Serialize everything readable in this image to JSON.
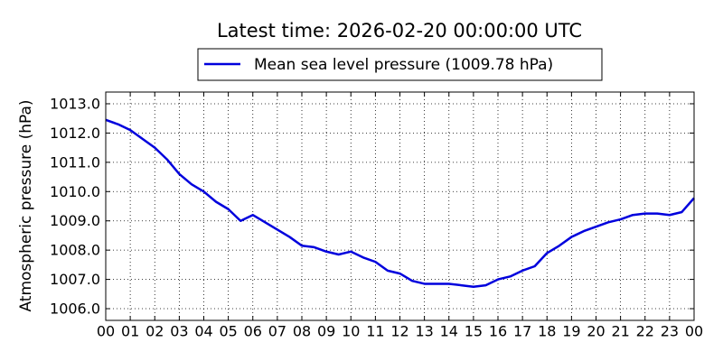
{
  "chart_data": {
    "type": "line",
    "title": "Latest time: 2026-02-20 00:00:00 UTC",
    "y_label": "Atmospheric pressure (hPa)",
    "x": [
      0,
      0.5,
      1,
      1.5,
      2,
      2.5,
      3,
      3.5,
      4,
      4.5,
      5,
      5.5,
      6,
      6.5,
      7,
      7.5,
      8,
      8.5,
      9,
      9.5,
      10,
      10.5,
      11,
      11.5,
      12,
      12.5,
      13,
      13.5,
      14,
      14.5,
      15,
      15.5,
      16,
      16.5,
      17,
      17.5,
      18,
      18.5,
      19,
      19.5,
      20,
      20.5,
      21,
      21.5,
      22,
      22.5,
      23,
      23.5,
      24
    ],
    "series": [
      {
        "name": "Mean sea level pressure (1009.78 hPa)",
        "color": "#0000dd",
        "values": [
          1012.45,
          1012.3,
          1012.1,
          1011.8,
          1011.5,
          1011.1,
          1010.6,
          1010.25,
          1010.0,
          1009.65,
          1009.4,
          1009.0,
          1009.2,
          1008.95,
          1008.7,
          1008.45,
          1008.15,
          1008.1,
          1007.95,
          1007.85,
          1007.95,
          1007.75,
          1007.6,
          1007.3,
          1007.2,
          1006.95,
          1006.85,
          1006.85,
          1006.85,
          1006.8,
          1006.75,
          1006.8,
          1007.0,
          1007.1,
          1007.3,
          1007.45,
          1007.9,
          1008.15,
          1008.45,
          1008.65,
          1008.8,
          1008.95,
          1009.05,
          1009.2,
          1009.25,
          1009.25,
          1009.2,
          1009.3,
          1009.78
        ]
      }
    ],
    "xlim": [
      0,
      24
    ],
    "xticks": [
      {
        "value": 0,
        "label": "00"
      },
      {
        "value": 1,
        "label": "01"
      },
      {
        "value": 2,
        "label": "02"
      },
      {
        "value": 3,
        "label": "03"
      },
      {
        "value": 4,
        "label": "04"
      },
      {
        "value": 5,
        "label": "05"
      },
      {
        "value": 6,
        "label": "06"
      },
      {
        "value": 7,
        "label": "07"
      },
      {
        "value": 8,
        "label": "08"
      },
      {
        "value": 9,
        "label": "09"
      },
      {
        "value": 10,
        "label": "10"
      },
      {
        "value": 11,
        "label": "11"
      },
      {
        "value": 12,
        "label": "12"
      },
      {
        "value": 13,
        "label": "13"
      },
      {
        "value": 14,
        "label": "14"
      },
      {
        "value": 15,
        "label": "15"
      },
      {
        "value": 16,
        "label": "16"
      },
      {
        "value": 17,
        "label": "17"
      },
      {
        "value": 18,
        "label": "18"
      },
      {
        "value": 19,
        "label": "19"
      },
      {
        "value": 20,
        "label": "20"
      },
      {
        "value": 21,
        "label": "21"
      },
      {
        "value": 22,
        "label": "22"
      },
      {
        "value": 23,
        "label": "23"
      },
      {
        "value": 24,
        "label": "00"
      }
    ],
    "ylim": [
      1005.6,
      1013.4
    ],
    "yticks": [
      {
        "value": 1006,
        "label": "1006.0"
      },
      {
        "value": 1007,
        "label": "1007.0"
      },
      {
        "value": 1008,
        "label": "1008.0"
      },
      {
        "value": 1009,
        "label": "1009.0"
      },
      {
        "value": 1010,
        "label": "1010.0"
      },
      {
        "value": 1011,
        "label": "1011.0"
      },
      {
        "value": 1012,
        "label": "1012.0"
      },
      {
        "value": 1013,
        "label": "1013.0"
      }
    ],
    "grid": true,
    "legend": "top"
  }
}
